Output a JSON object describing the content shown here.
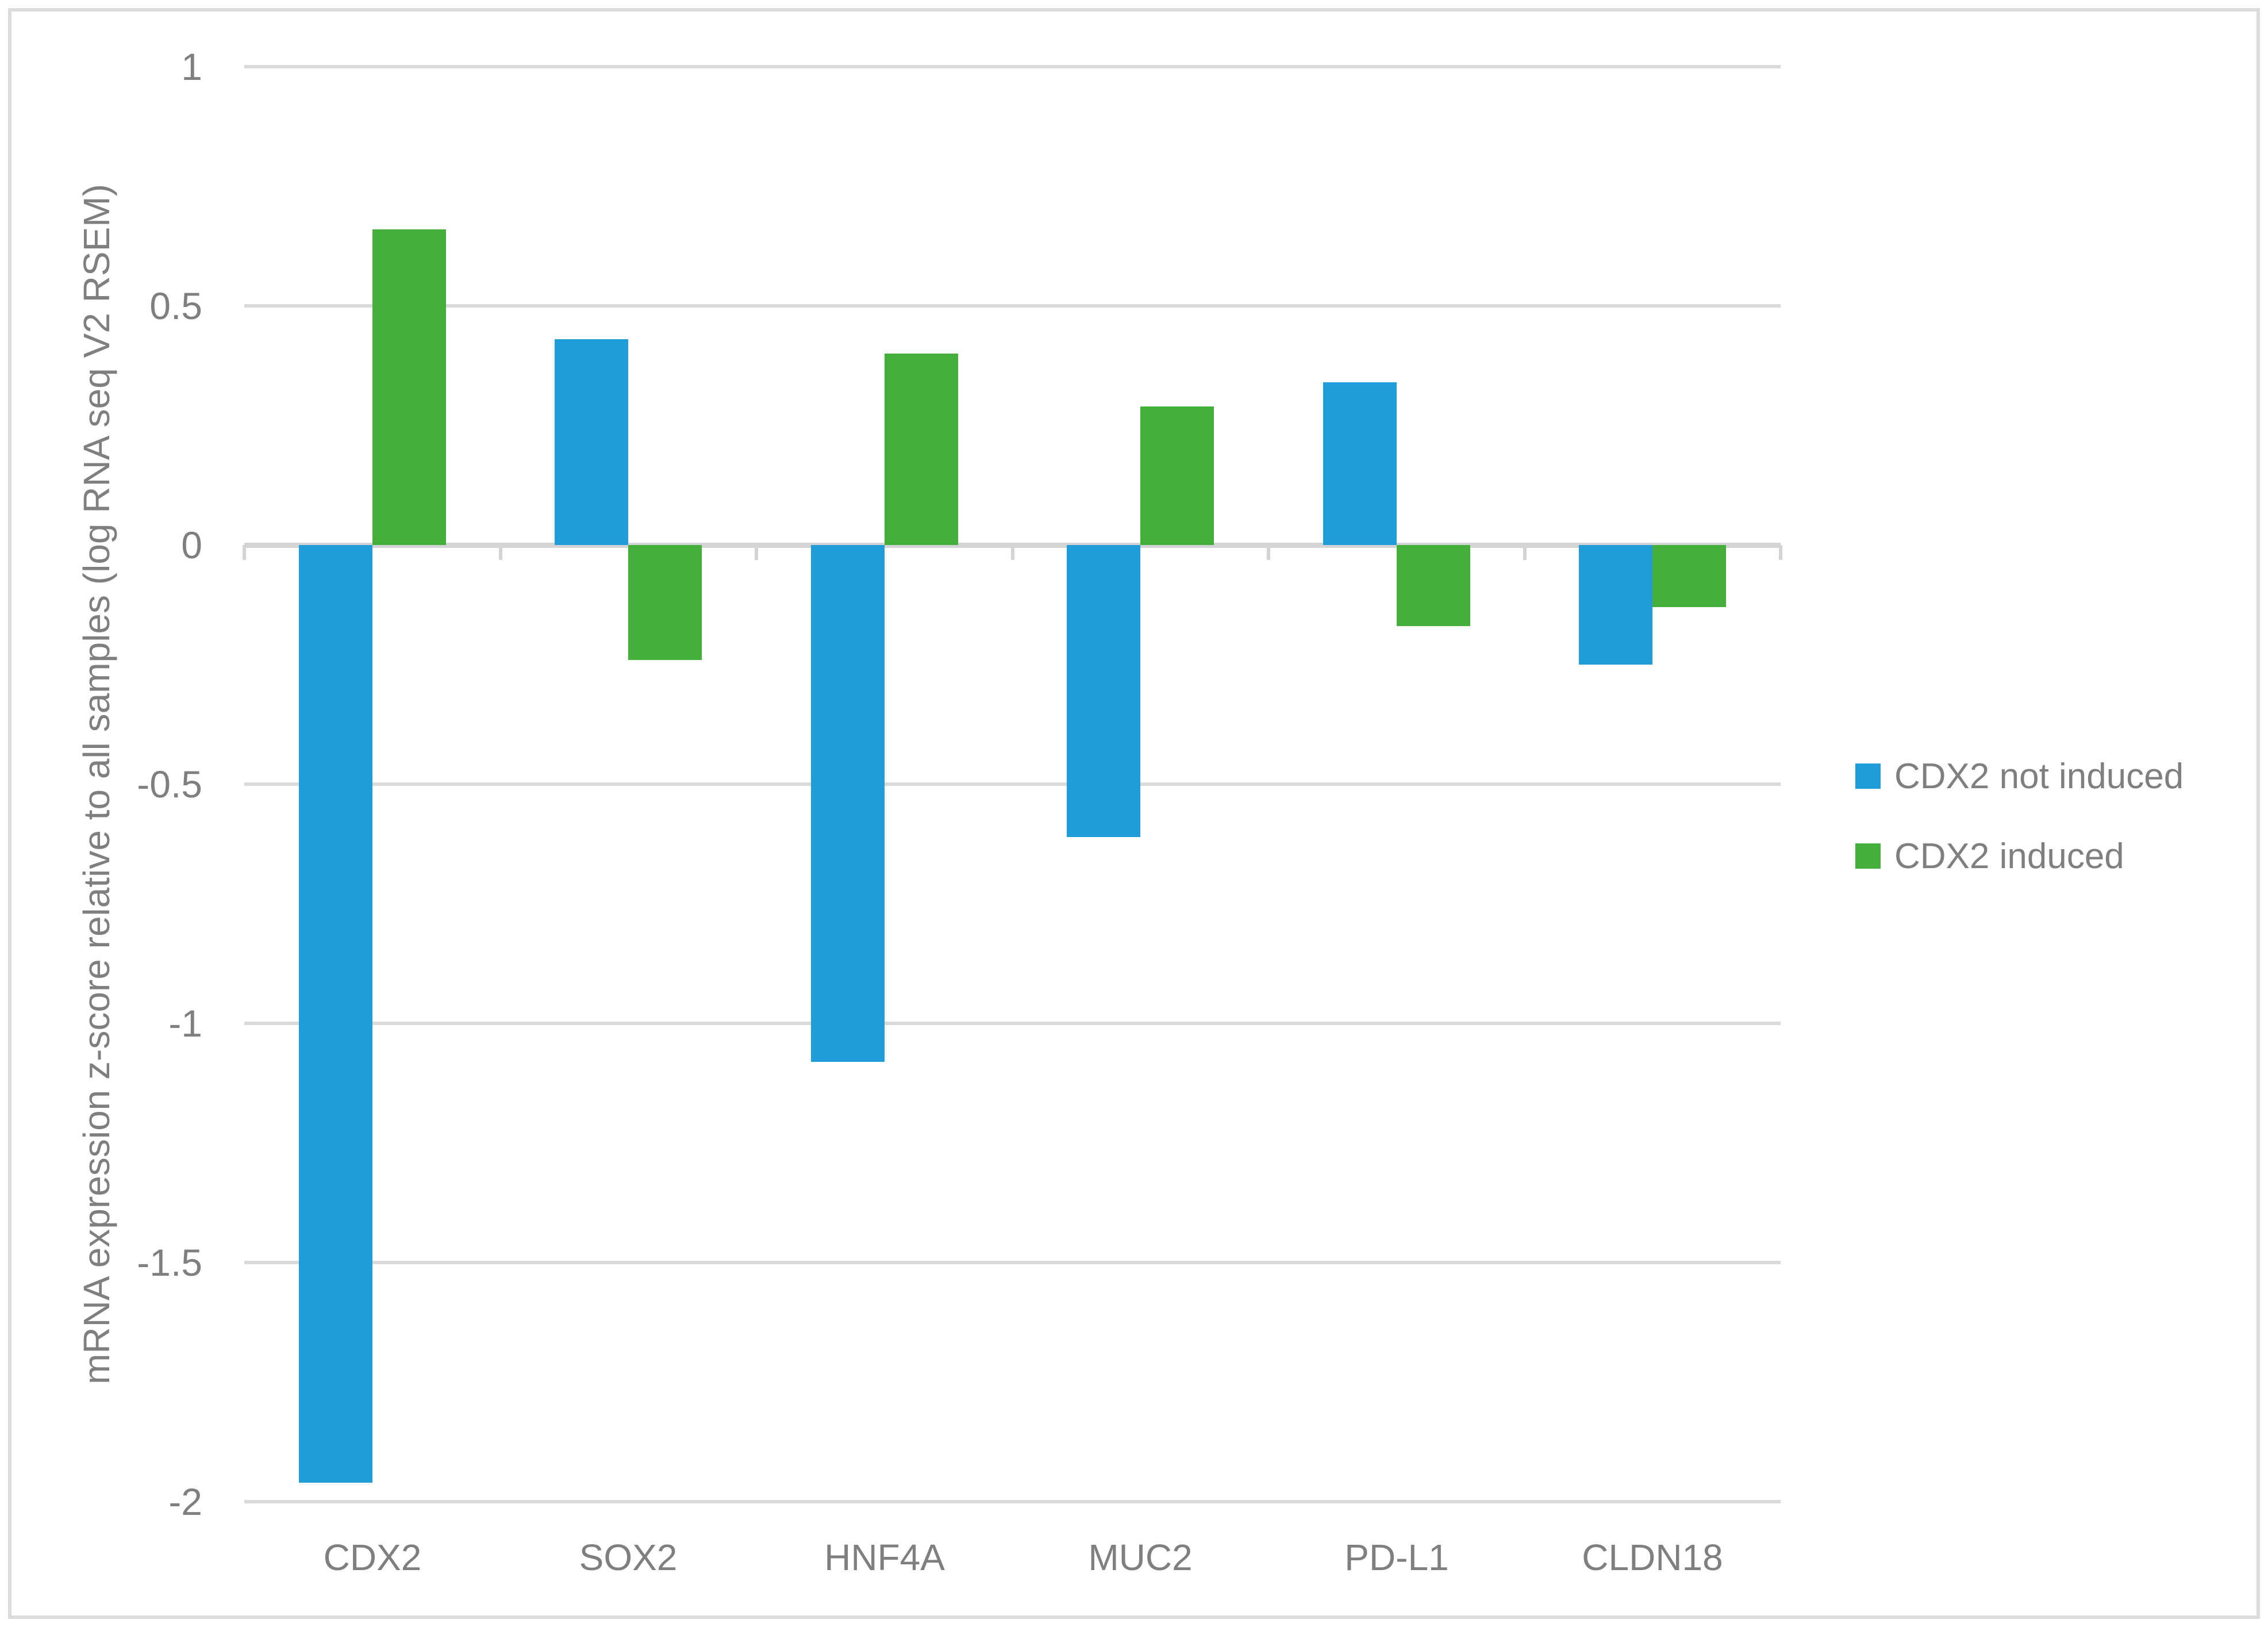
{
  "chart_data": {
    "type": "bar",
    "categories": [
      "CDX2",
      "SOX2",
      "HNF4A",
      "MUC2",
      "PD-L1",
      "CLDN18"
    ],
    "series": [
      {
        "name": "CDX2 not induced",
        "color": "#1E9DD8",
        "values": [
          -1.96,
          0.43,
          -1.08,
          -0.61,
          0.34,
          -0.25
        ]
      },
      {
        "name": "CDX2 induced",
        "color": "#45AF3B",
        "values": [
          0.66,
          -0.24,
          0.4,
          0.29,
          -0.17,
          -0.13
        ]
      }
    ],
    "title": "",
    "xlabel": "",
    "ylabel": "mRNA expression z-score relative to all samples (log RNA seq V2 RSEM)",
    "ylim": [
      -2,
      1
    ],
    "yticks": [
      {
        "value": 1,
        "label": "1"
      },
      {
        "value": 0.5,
        "label": "0.5"
      },
      {
        "value": 0,
        "label": "0"
      },
      {
        "value": -0.5,
        "label": "-0.5"
      },
      {
        "value": -1,
        "label": "-1"
      },
      {
        "value": -1.5,
        "label": "-1.5"
      },
      {
        "value": -2,
        "label": "-2"
      }
    ],
    "grid": true,
    "legend_position": "right-middle"
  },
  "colors": {
    "background": "#FFFFFF",
    "border": "#DCDCDC",
    "gridline": "#D9D9D9",
    "zero_line": "#D4D4D4",
    "axis_text": "#7F7F7F"
  }
}
